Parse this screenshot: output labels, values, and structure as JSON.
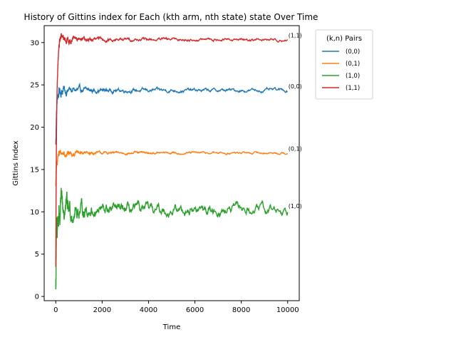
{
  "chart_data": {
    "type": "line",
    "title": "History of Gittins index for Each (kth arm, nth state) state Over Time",
    "xlabel": "Time",
    "ylabel": "Gittins Index",
    "xlim": [
      -500,
      10500
    ],
    "ylim": [
      -0.5,
      32
    ],
    "xticks": [
      "0",
      "2000",
      "4000",
      "6000",
      "8000",
      "10000"
    ],
    "yticks": [
      "0",
      "5",
      "10",
      "15",
      "20",
      "25",
      "30"
    ],
    "grid": false,
    "legend": {
      "title": "(k,n) Pairs",
      "placement": "outside-right"
    },
    "series": [
      {
        "name": "(0,0)",
        "color": "#1f77b4",
        "start": 18.0,
        "steady": 24.35,
        "noise": 0.12,
        "end_label": "(0,0)"
      },
      {
        "name": "(0,1)",
        "color": "#ff7f0e",
        "start": 13.0,
        "steady": 16.95,
        "noise": 0.08,
        "end_label": "(0,1)"
      },
      {
        "name": "(1,0)",
        "color": "#2ca02c",
        "start": 1.0,
        "steady": 10.2,
        "noise": 0.35,
        "end_label": "(1,0)"
      },
      {
        "name": "(1,1)",
        "color": "#d62728",
        "start": 3.5,
        "steady": 30.35,
        "noise": 0.1,
        "end_label": "(1,1)"
      }
    ]
  }
}
